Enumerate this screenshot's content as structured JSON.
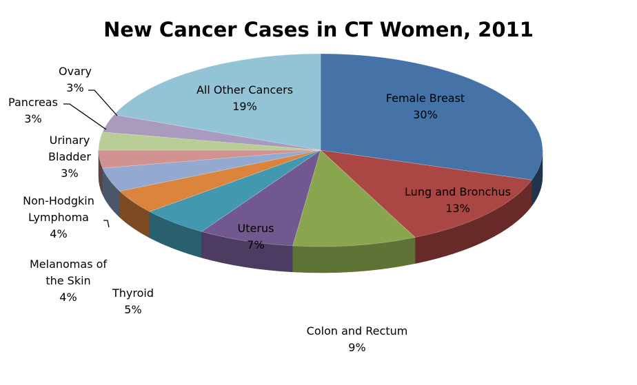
{
  "chart_data": {
    "type": "pie",
    "title": "New Cancer Cases in CT Women, 2011",
    "slices": [
      {
        "name": "Female Breast",
        "label_lines": [
          "Female Breast"
        ],
        "value": 30,
        "pct_label": "30%",
        "color": "#4572A7"
      },
      {
        "name": "Lung and Bronchus",
        "label_lines": [
          "Lung and Bronchus"
        ],
        "value": 13,
        "pct_label": "13%",
        "color": "#AA4643"
      },
      {
        "name": "Colon and Rectum",
        "label_lines": [
          "Colon and Rectum"
        ],
        "value": 9,
        "pct_label": "9%",
        "color": "#89A54E"
      },
      {
        "name": "Uterus",
        "label_lines": [
          "Uterus"
        ],
        "value": 7,
        "pct_label": "7%",
        "color": "#71588F"
      },
      {
        "name": "Thyroid",
        "label_lines": [
          "Thyroid"
        ],
        "value": 5,
        "pct_label": "5%",
        "color": "#4198AF"
      },
      {
        "name": "Melanomas of the Skin",
        "label_lines": [
          "Melanomas of",
          "the Skin"
        ],
        "value": 4,
        "pct_label": "4%",
        "color": "#DB843D"
      },
      {
        "name": "Non-Hodgkin Lymphoma",
        "label_lines": [
          "Non-Hodgkin",
          "Lymphoma"
        ],
        "value": 4,
        "pct_label": "4%",
        "color": "#93A9CF"
      },
      {
        "name": "Urinary Bladder",
        "label_lines": [
          "Urinary",
          "Bladder"
        ],
        "value": 3,
        "pct_label": "3%",
        "color": "#D19392"
      },
      {
        "name": "Pancreas",
        "label_lines": [
          "Pancreas"
        ],
        "value": 3,
        "pct_label": "3%",
        "color": "#B9CD96"
      },
      {
        "name": "Ovary",
        "label_lines": [
          "Ovary"
        ],
        "value": 3,
        "pct_label": "3%",
        "color": "#A99BBD"
      },
      {
        "name": "All Other Cancers",
        "label_lines": [
          "All Other Cancers"
        ],
        "value": 19,
        "pct_label": "19%",
        "color": "#93C4D5"
      }
    ]
  }
}
